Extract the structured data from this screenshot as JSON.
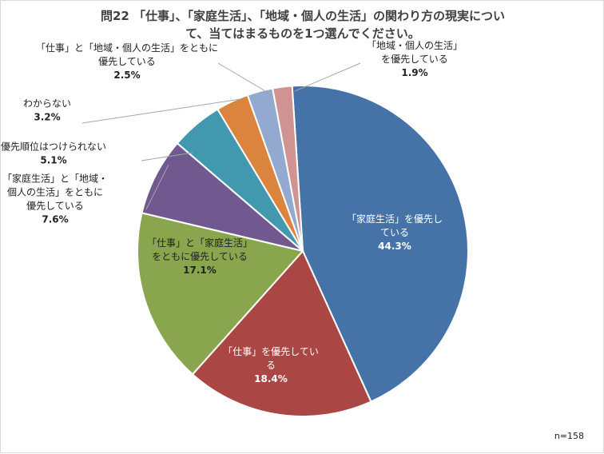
{
  "chart_data": {
    "type": "pie",
    "title_lines": [
      "問22 「仕事」、「家庭生活」、「地域・個人の生活」の関わり方の現実につい",
      "て、当てはまるものを1つ選んでください。"
    ],
    "note": "n=158",
    "start_angle_deg": -3.7,
    "slices": [
      {
        "label_lines": [
          "「家庭生活」を優先し",
          "ている"
        ],
        "value": 44.3,
        "value_text": "44.3%",
        "color": "#4572a7",
        "label_color": "#ffffff"
      },
      {
        "label_lines": [
          "「仕事」を優先してい",
          "る"
        ],
        "value": 18.4,
        "value_text": "18.4%",
        "color": "#aa4643",
        "label_color": "#ffffff"
      },
      {
        "label_lines": [
          "「仕事」と「家庭生活」",
          "をともに優先している"
        ],
        "value": 17.1,
        "value_text": "17.1%",
        "color": "#89a54e",
        "label_color": "#222222"
      },
      {
        "label_lines": [
          "「家庭生活」と「地域・",
          "個人の生活」をともに",
          "優先している"
        ],
        "value": 7.6,
        "value_text": "7.6%",
        "color": "#71588f",
        "label_color": "#222222"
      },
      {
        "label_lines": [
          "優先順位はつけられない"
        ],
        "value": 5.1,
        "value_text": "5.1%",
        "color": "#4198af",
        "label_color": "#222222"
      },
      {
        "label_lines": [
          "わからない"
        ],
        "value": 3.2,
        "value_text": "3.2%",
        "color": "#db843d",
        "label_color": "#222222"
      },
      {
        "label_lines": [
          "「仕事」と「地域・個人の生活」をともに",
          "優先している"
        ],
        "value": 2.5,
        "value_text": "2.5%",
        "color": "#93a9cf",
        "label_color": "#222222"
      },
      {
        "label_lines": [
          "「地域・個人の生活」",
          "を優先している"
        ],
        "value": 1.9,
        "value_text": "1.9%",
        "color": "#d19392",
        "label_color": "#222222"
      }
    ]
  }
}
